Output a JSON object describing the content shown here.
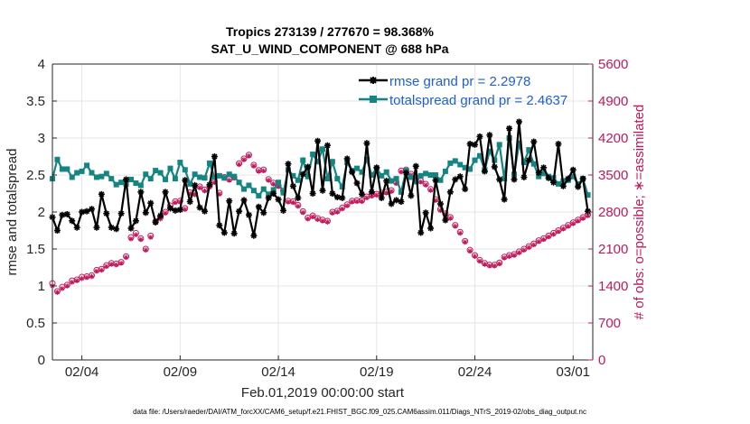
{
  "chart_data": {
    "type": "line",
    "title": "Tropics 273139 / 277670 = 98.368%",
    "subtitle": "SAT_U_WIND_COMPONENT @ 688 hPa",
    "xlabel": "Feb.01,2019 00:00:00 start",
    "ylabel": "rmse and totalspread",
    "ylabel_right": "# of obs: o=possible; ∗=assimilated",
    "footnote": "data file: /Users/raeder/DAI/ATM_forcXX/CAM6_setup/f.e21.FHIST_BGC.f09_025.CAM6assim.011/Diags_NTrS_2019-02/obs_diag_output.nc",
    "xlim": [
      1.5,
      29.0
    ],
    "ylim": [
      0,
      4
    ],
    "ylim_right": [
      0,
      5600
    ],
    "grid": true,
    "x_ticks": [
      3,
      8,
      13,
      18,
      23,
      28
    ],
    "x_tick_labels": [
      "02/04",
      "02/09",
      "02/14",
      "02/19",
      "02/24",
      "03/01"
    ],
    "y_ticks": [
      0,
      0.5,
      1,
      1.5,
      2,
      2.5,
      3,
      3.5,
      4
    ],
    "y_tick_labels": [
      "0",
      "0.5",
      "1",
      "1.5",
      "2",
      "2.5",
      "3",
      "3.5",
      "4"
    ],
    "y_right_ticks": [
      0,
      700,
      1400,
      2100,
      2800,
      3500,
      4200,
      4900,
      5600
    ],
    "y_right_tick_labels": [
      "0",
      "700",
      "1400",
      "2100",
      "2800",
      "3500",
      "4200",
      "4900",
      "5600"
    ],
    "legend_position": "top-right",
    "colors": {
      "rmse": "#000000",
      "spread": "#148582",
      "obs": "#c2185b",
      "grid": "#e6e6e6",
      "axis": "#262626"
    },
    "x": [
      1.5,
      1.75,
      2.0,
      2.25,
      2.5,
      2.75,
      3.0,
      3.25,
      3.5,
      3.75,
      4.0,
      4.25,
      4.5,
      4.75,
      5.0,
      5.25,
      5.5,
      5.75,
      6.0,
      6.25,
      6.5,
      6.75,
      7.0,
      7.25,
      7.5,
      7.75,
      8.0,
      8.25,
      8.5,
      8.75,
      9.0,
      9.25,
      9.5,
      9.75,
      10.0,
      10.25,
      10.5,
      10.75,
      11.0,
      11.25,
      11.5,
      11.75,
      12.0,
      12.25,
      12.5,
      12.75,
      13.0,
      13.25,
      13.5,
      13.75,
      14.0,
      14.25,
      14.5,
      14.75,
      15.0,
      15.25,
      15.5,
      15.75,
      16.0,
      16.25,
      16.5,
      16.75,
      17.0,
      17.25,
      17.5,
      17.75,
      18.0,
      18.25,
      18.5,
      18.75,
      19.0,
      19.25,
      19.5,
      19.75,
      20.0,
      20.25,
      20.5,
      20.75,
      21.0,
      21.25,
      21.5,
      21.75,
      22.0,
      22.25,
      22.5,
      22.75,
      23.0,
      23.25,
      23.5,
      23.75,
      24.0,
      24.25,
      24.5,
      24.75,
      25.0,
      25.25,
      25.5,
      25.75,
      26.0,
      26.25,
      26.5,
      26.75,
      27.0,
      27.25,
      27.5,
      27.75,
      28.0,
      28.25,
      28.5,
      28.75
    ],
    "series": [
      {
        "name": "rmse grand pr = 2.2978",
        "label": "rmse grand pr = 2.2978",
        "values": [
          1.93,
          1.75,
          1.96,
          1.97,
          1.88,
          1.79,
          2.0,
          2.01,
          2.04,
          1.79,
          2.24,
          1.98,
          1.79,
          1.77,
          1.98,
          2.44,
          1.78,
          1.88,
          2.27,
          1.99,
          2.12,
          1.86,
          1.95,
          2.27,
          2.05,
          2.02,
          2.03,
          2.43,
          2.14,
          2.36,
          2.06,
          2.01,
          2.37,
          2.75,
          1.82,
          1.72,
          2.15,
          1.71,
          2.01,
          2.16,
          1.96,
          1.68,
          2.07,
          1.99,
          2.19,
          2.25,
          2.17,
          2.02,
          2.65,
          2.35,
          2.19,
          2.51,
          2.61,
          2.25,
          2.96,
          2.29,
          2.9,
          2.25,
          2.2,
          2.19,
          2.72,
          2.54,
          2.39,
          2.24,
          2.93,
          2.27,
          2.6,
          2.19,
          2.42,
          2.11,
          2.16,
          2.14,
          2.53,
          2.22,
          2.62,
          1.72,
          1.99,
          1.78,
          2.43,
          2.11,
          1.89,
          2.27,
          2.44,
          2.48,
          2.31,
          2.92,
          2.91,
          3.02,
          2.55,
          3.04,
          2.61,
          2.44,
          2.17,
          3.13,
          2.44,
          3.22,
          2.47,
          2.7,
          2.95,
          2.53,
          2.6,
          2.46,
          2.4,
          2.92,
          2.35,
          2.45,
          2.57,
          2.34,
          2.45,
          2.01
        ]
      },
      {
        "name": "totalspread grand pr = 2.4637",
        "label": "totalspread grand pr = 2.4637",
        "values": [
          2.45,
          2.71,
          2.58,
          2.58,
          2.47,
          2.53,
          2.55,
          2.63,
          2.53,
          2.47,
          2.48,
          2.52,
          2.45,
          2.37,
          2.4,
          2.38,
          2.44,
          2.39,
          2.36,
          2.51,
          2.45,
          2.56,
          2.53,
          2.44,
          2.59,
          2.45,
          2.67,
          2.57,
          2.38,
          2.51,
          2.47,
          2.46,
          2.66,
          2.47,
          2.49,
          2.46,
          2.51,
          2.48,
          2.4,
          2.31,
          2.36,
          2.29,
          2.22,
          2.31,
          2.24,
          2.3,
          2.4,
          2.26,
          2.57,
          2.49,
          2.43,
          2.7,
          2.48,
          2.78,
          2.68,
          2.85,
          2.45,
          2.68,
          2.45,
          2.34,
          2.67,
          2.56,
          2.59,
          2.54,
          2.71,
          2.5,
          2.59,
          2.49,
          2.54,
          2.42,
          2.45,
          2.27,
          2.56,
          2.47,
          2.41,
          2.49,
          2.52,
          2.5,
          2.5,
          2.43,
          2.55,
          2.66,
          2.69,
          2.64,
          2.6,
          2.58,
          2.7,
          2.76,
          2.57,
          2.82,
          2.7,
          2.91,
          2.45,
          3.0,
          2.51,
          2.93,
          2.67,
          2.84,
          2.65,
          2.48,
          2.52,
          2.48,
          2.46,
          2.38,
          2.42,
          2.43,
          2.48,
          2.38,
          2.45,
          2.23
        ]
      },
      {
        "name": "obs possible",
        "values": [
          1450,
          1300,
          1380,
          1420,
          1500,
          1520,
          1570,
          1580,
          1600,
          1700,
          1720,
          1790,
          1830,
          1820,
          1850,
          1960,
          2320,
          2400,
          2300,
          2100,
          2350,
          2620,
          2700,
          2800,
          2920,
          3000,
          3010,
          2870,
          3170,
          3150,
          3280,
          3220,
          3290,
          3380,
          3160,
          3460,
          3420,
          3460,
          3720,
          3810,
          3880,
          3690,
          3590,
          3600,
          3420,
          3350,
          3300,
          3200,
          3010,
          3000,
          2930,
          2810,
          2690,
          2730,
          2680,
          2650,
          2630,
          2800,
          2820,
          2880,
          2940,
          3010,
          3020,
          3020,
          3090,
          3120,
          3140,
          3160,
          3180,
          3210,
          3360,
          3580,
          3600,
          3520,
          3460,
          3390,
          3330,
          3230,
          3040,
          2850,
          2770,
          2700,
          2550,
          2420,
          2250,
          2080,
          1980,
          1890,
          1830,
          1800,
          1800,
          1840,
          1950,
          1980,
          2000,
          2050,
          2100,
          2150,
          2200,
          2260,
          2300,
          2350,
          2400,
          2450,
          2500,
          2550,
          2600,
          2650,
          2700,
          2750
        ]
      },
      {
        "name": "obs assimilated",
        "values": [
          1400,
          1280,
          1350,
          1400,
          1470,
          1500,
          1540,
          1560,
          1580,
          1680,
          1700,
          1770,
          1810,
          1800,
          1830,
          1940,
          2290,
          2370,
          2280,
          2080,
          2320,
          2600,
          2670,
          2780,
          2890,
          2980,
          2990,
          2850,
          3150,
          3130,
          3260,
          3200,
          3270,
          3360,
          3140,
          3440,
          3400,
          3440,
          3700,
          3790,
          3860,
          3670,
          3570,
          3580,
          3400,
          3330,
          3280,
          3180,
          2990,
          2980,
          2910,
          2790,
          2670,
          2710,
          2660,
          2630,
          2610,
          2780,
          2800,
          2860,
          2920,
          2990,
          3000,
          3000,
          3070,
          3100,
          3120,
          3140,
          3160,
          3190,
          3340,
          3560,
          3580,
          3500,
          3440,
          3370,
          3310,
          3210,
          3020,
          2830,
          2750,
          2680,
          2530,
          2400,
          2230,
          2060,
          1960,
          1870,
          1810,
          1780,
          1780,
          1820,
          1930,
          1960,
          1980,
          2030,
          2080,
          2130,
          2180,
          2240,
          2280,
          2330,
          2380,
          2430,
          2480,
          2530,
          2580,
          2630,
          2680,
          2730
        ]
      }
    ]
  }
}
